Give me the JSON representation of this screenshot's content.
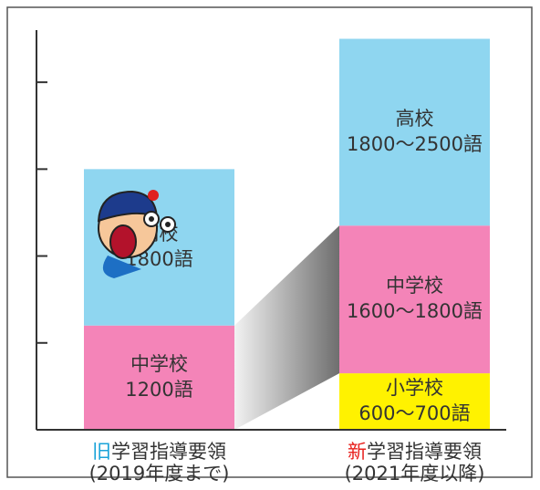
{
  "chart_data": {
    "type": "stacked_range_bar",
    "categories": [
      "旧学習指導要領",
      "新学習指導要領"
    ],
    "category_notes": [
      "(2019年度まで)",
      "(2021年度以降)"
    ],
    "category_colors": [
      "#1aa3d9",
      "#e8211d"
    ],
    "series": [
      {
        "name": "小学校",
        "color": "#fff200",
        "low": [
          null,
          600
        ],
        "high": [
          null,
          700
        ],
        "value_labels": [
          null,
          "600〜700語"
        ]
      },
      {
        "name": "中学校",
        "color": "#f484b8",
        "low": [
          1200,
          1600
        ],
        "high": [
          1200,
          1800
        ],
        "value_labels": [
          "1200語",
          "1600〜1800語"
        ]
      },
      {
        "name": "高校",
        "color": "#8fd6f0",
        "low": [
          1800,
          1800
        ],
        "high": [
          1800,
          2500
        ],
        "value_labels": [
          "1800語",
          "1800〜2500語"
        ]
      }
    ],
    "ylim": [
      0,
      4600
    ],
    "yticks": [
      0,
      1000,
      2000,
      3000,
      4000
    ]
  }
}
